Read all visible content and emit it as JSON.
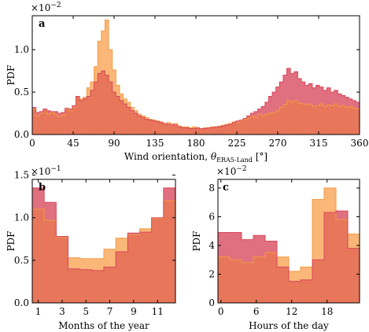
{
  "colors": {
    "orange": "#fbb778",
    "pink": "#e0707f",
    "overlap": "#e8765a",
    "edge_orange": "#f39a45",
    "edge_pink": "#d9475a"
  },
  "chart_data": [
    {
      "id": "a",
      "panel_label": "a",
      "type": "area",
      "histogram": true,
      "xlabel_main": "Wind orientation, ",
      "xlabel_symbol": "θ",
      "xlabel_sub": "ERA5-Land",
      "xlabel_unit": " [°]",
      "ylabel": "PDF",
      "scale_base": "×10",
      "scale_exp": "−2",
      "xlim": [
        0,
        360
      ],
      "ylim": [
        0,
        1.4
      ],
      "xticks": [
        0,
        45,
        90,
        135,
        180,
        225,
        270,
        315,
        360
      ],
      "xtick_labels": [
        "0",
        "45",
        "90",
        "135",
        "180",
        "225",
        "270",
        "315",
        "360"
      ],
      "yticks": [
        0,
        0.5,
        1.0
      ],
      "ytick_labels": [
        "0.0",
        "0.5",
        "1.0"
      ],
      "bin_width": 4,
      "series": [
        {
          "name": "",
          "color": "orange",
          "values": [
            0.3,
            0.22,
            0.25,
            0.3,
            0.24,
            0.26,
            0.24,
            0.21,
            0.23,
            0.3,
            0.28,
            0.32,
            0.45,
            0.42,
            0.44,
            0.55,
            0.62,
            0.8,
            1.1,
            1.22,
            1.35,
            1.0,
            0.76,
            0.58,
            0.48,
            0.42,
            0.38,
            0.32,
            0.28,
            0.24,
            0.22,
            0.2,
            0.18,
            0.17,
            0.16,
            0.15,
            0.13,
            0.14,
            0.12,
            0.13,
            0.1,
            0.09,
            0.09,
            0.08,
            0.09,
            0.08,
            0.07,
            0.08,
            0.08,
            0.09,
            0.09,
            0.1,
            0.11,
            0.12,
            0.13,
            0.15,
            0.14,
            0.16,
            0.18,
            0.19,
            0.22,
            0.2,
            0.24,
            0.22,
            0.24,
            0.25,
            0.26,
            0.28,
            0.32,
            0.35,
            0.4,
            0.38,
            0.4,
            0.37,
            0.36,
            0.35,
            0.36,
            0.33,
            0.34,
            0.36,
            0.33,
            0.35,
            0.34,
            0.36,
            0.33,
            0.34,
            0.32,
            0.33,
            0.31,
            0.3
          ]
        },
        {
          "name": "",
          "color": "pink",
          "values": [
            0.32,
            0.26,
            0.27,
            0.3,
            0.28,
            0.27,
            0.27,
            0.25,
            0.26,
            0.31,
            0.3,
            0.34,
            0.45,
            0.4,
            0.42,
            0.45,
            0.52,
            0.62,
            0.72,
            0.75,
            0.7,
            0.62,
            0.5,
            0.45,
            0.4,
            0.36,
            0.32,
            0.28,
            0.25,
            0.22,
            0.2,
            0.18,
            0.17,
            0.16,
            0.15,
            0.14,
            0.13,
            0.12,
            0.12,
            0.11,
            0.09,
            0.08,
            0.08,
            0.07,
            0.07,
            0.08,
            0.07,
            0.07,
            0.08,
            0.08,
            0.09,
            0.09,
            0.1,
            0.11,
            0.12,
            0.14,
            0.16,
            0.17,
            0.19,
            0.22,
            0.25,
            0.27,
            0.3,
            0.33,
            0.38,
            0.45,
            0.5,
            0.56,
            0.62,
            0.7,
            0.78,
            0.72,
            0.74,
            0.66,
            0.62,
            0.58,
            0.6,
            0.55,
            0.58,
            0.56,
            0.52,
            0.55,
            0.5,
            0.52,
            0.48,
            0.46,
            0.44,
            0.42,
            0.4,
            0.38
          ]
        }
      ]
    },
    {
      "id": "b",
      "panel_label": "b",
      "type": "area",
      "histogram": true,
      "xlabel_main": "Months of the year",
      "ylabel": "PDF",
      "scale_base": "×10",
      "scale_exp": "−1",
      "xlim": [
        0.5,
        12.5
      ],
      "ylim": [
        0,
        1.45
      ],
      "xticks": [
        1,
        3,
        5,
        7,
        9,
        11
      ],
      "xtick_labels": [
        "1",
        "3",
        "5",
        "7",
        "9",
        "11"
      ],
      "yticks": [
        0,
        0.5,
        1.0,
        1.5
      ],
      "ytick_labels": [
        "0.0",
        "0.5",
        "1.0",
        "1.5"
      ],
      "bin_width": 1,
      "series": [
        {
          "name": "",
          "color": "orange",
          "values": [
            1.1,
            0.97,
            0.77,
            0.53,
            0.52,
            0.52,
            0.63,
            0.76,
            0.8,
            0.87,
            0.99,
            1.2
          ]
        },
        {
          "name": "",
          "color": "pink",
          "values": [
            1.35,
            1.18,
            0.78,
            0.4,
            0.39,
            0.38,
            0.42,
            0.6,
            0.82,
            0.83,
            1.0,
            1.35
          ]
        }
      ]
    },
    {
      "id": "c",
      "panel_label": "c",
      "type": "area",
      "histogram": true,
      "xlabel_main": "Hours of the day",
      "ylabel": "PDF",
      "scale_base": "×10",
      "scale_exp": "−2",
      "xlim": [
        -0.5,
        23.5
      ],
      "ylim": [
        0,
        8.6
      ],
      "xticks": [
        0,
        6,
        12,
        18
      ],
      "xtick_labels": [
        "0",
        "6",
        "12",
        "18"
      ],
      "yticks": [
        0,
        2,
        4,
        6,
        8
      ],
      "ytick_labels": [
        "0",
        "2",
        "4",
        "6",
        "8"
      ],
      "bin_width": 2,
      "series": [
        {
          "name": "",
          "color": "orange",
          "values": [
            3.2,
            3.0,
            2.8,
            3.2,
            3.5,
            3.2,
            2.2,
            2.5,
            7.2,
            8.0,
            5.8,
            4.8
          ]
        },
        {
          "name": "",
          "color": "pink",
          "values": [
            4.9,
            4.9,
            4.4,
            4.7,
            4.3,
            2.5,
            1.5,
            1.6,
            3.0,
            6.3,
            6.4,
            3.8
          ]
        }
      ]
    }
  ]
}
